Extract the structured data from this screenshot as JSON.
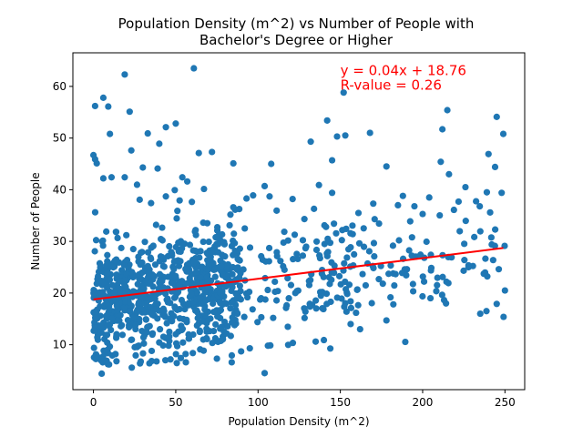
{
  "chart_data": {
    "type": "scatter",
    "title_lines": [
      "Population Density (m^2) vs Number of People with",
      "Bachelor's Degree or Higher"
    ],
    "xlabel": "Population Density (m^2)",
    "ylabel": "Number of People",
    "xlim": [
      -12.5,
      262
    ],
    "ylim": [
      1.3,
      66.5
    ],
    "xticks": [
      0,
      50,
      100,
      150,
      200,
      250
    ],
    "yticks": [
      10,
      20,
      30,
      40,
      50,
      60
    ],
    "grid": false,
    "point_color": "#1f77b4",
    "regression": {
      "slope": 0.04,
      "intercept": 18.76,
      "x_range": [
        0,
        249
      ],
      "color": "#ff0000"
    },
    "annotations": [
      {
        "text": "y = 0.04x + 18.76",
        "x": 150,
        "y": 62.2
      },
      {
        "text": "R-value = 0.26",
        "x": 150,
        "y": 59.4
      }
    ],
    "point_count": 1000,
    "outliers": [
      [
        61,
        63.5
      ],
      [
        19,
        62.3
      ],
      [
        152,
        58.8
      ],
      [
        1,
        56.2
      ],
      [
        6,
        57.8
      ],
      [
        9,
        56.1
      ],
      [
        22,
        55.1
      ],
      [
        215,
        55.4
      ],
      [
        245,
        54.1
      ],
      [
        142,
        53.4
      ],
      [
        50,
        52.8
      ],
      [
        44,
        52.1
      ],
      [
        10,
        50.8
      ],
      [
        33,
        50.9
      ],
      [
        148,
        50.3
      ],
      [
        153,
        50.5
      ],
      [
        168,
        51.0
      ],
      [
        212,
        51.7
      ],
      [
        249,
        50.8
      ],
      [
        132,
        49.3
      ],
      [
        40,
        48.9
      ],
      [
        23,
        47.6
      ],
      [
        64,
        47.1
      ],
      [
        72,
        47.3
      ],
      [
        240,
        46.9
      ],
      [
        0,
        46.7
      ],
      [
        1,
        45.9
      ],
      [
        2,
        45.1
      ],
      [
        39,
        44.1
      ],
      [
        85,
        45.1
      ],
      [
        108,
        45.0
      ],
      [
        145,
        45.7
      ],
      [
        211,
        45.4
      ],
      [
        244,
        44.4
      ],
      [
        178,
        44.5
      ],
      [
        216,
        43.0
      ],
      [
        30,
        44.3
      ],
      [
        6,
        42.2
      ],
      [
        11,
        42.4
      ],
      [
        19,
        42.4
      ],
      [
        54,
        42.4
      ],
      [
        57,
        41.6
      ],
      [
        104,
        40.7
      ],
      [
        137,
        40.9
      ],
      [
        145,
        39.4
      ],
      [
        204,
        38.5
      ],
      [
        226,
        40.5
      ],
      [
        239,
        39.5
      ],
      [
        248,
        39.4
      ],
      [
        35,
        37.4
      ],
      [
        44,
        38.7
      ],
      [
        51,
        35.9
      ],
      [
        85,
        36.6
      ],
      [
        93,
        38.3
      ],
      [
        97,
        38.9
      ],
      [
        107,
        38.7
      ],
      [
        121,
        38.2
      ],
      [
        170,
        37.3
      ],
      [
        188,
        38.8
      ],
      [
        219,
        36.1
      ],
      [
        241,
        35.6
      ],
      [
        185,
        37.0
      ],
      [
        200,
        35.3
      ],
      [
        195,
        36.8
      ],
      [
        161,
        35.5
      ],
      [
        134,
        36.3
      ],
      [
        104,
        4.5
      ],
      [
        5,
        4.4
      ],
      [
        14,
        6.8
      ],
      [
        8,
        6.9
      ],
      [
        34,
        6.4
      ],
      [
        84,
        6.6
      ],
      [
        56,
        8.2
      ],
      [
        75,
        7.3
      ],
      [
        95,
        9.3
      ],
      [
        106,
        9.8
      ],
      [
        135,
        10.6
      ],
      [
        140,
        10.9
      ],
      [
        162,
        13.0
      ],
      [
        235,
        16.0
      ],
      [
        245,
        17.9
      ],
      [
        178,
        14.7
      ],
      [
        250,
        20.5
      ]
    ]
  }
}
